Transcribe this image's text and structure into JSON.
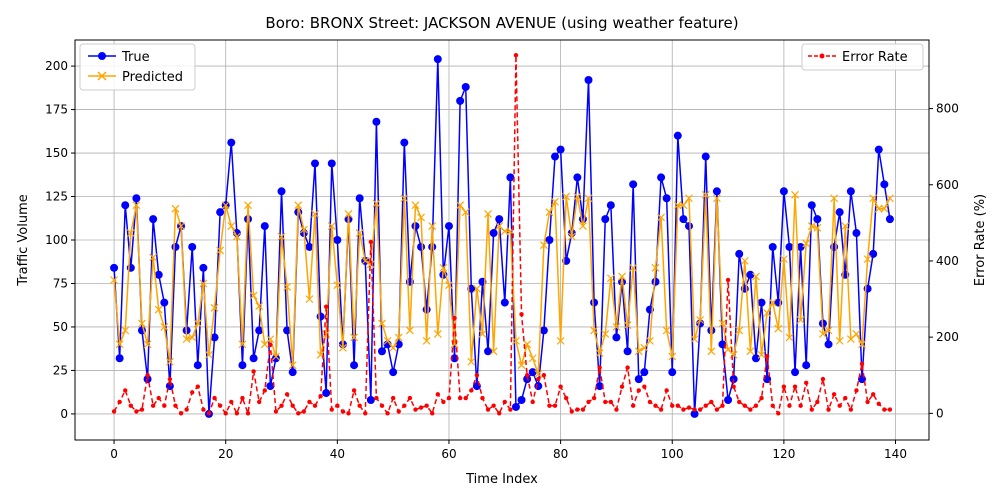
{
  "chart_data": {
    "type": "line",
    "title": "Boro: BRONX Street: JACKSON AVENUE (using weather feature)",
    "xlabel": "Time Index",
    "ylabel": "Traffic Volume",
    "y2label": "Error Rate (%)",
    "xlim": [
      -7,
      146
    ],
    "ylim": [
      -15,
      215
    ],
    "y2lim": [
      -70,
      980
    ],
    "xticks": [
      0,
      20,
      40,
      60,
      80,
      100,
      120,
      140
    ],
    "yticks": [
      0,
      25,
      50,
      75,
      100,
      125,
      150,
      175,
      200
    ],
    "y2ticks": [
      0,
      200,
      400,
      600,
      800
    ],
    "grid": true,
    "legend_left": "upper-left",
    "legend_right": "upper-right",
    "x": [
      0,
      1,
      2,
      3,
      4,
      5,
      6,
      7,
      8,
      9,
      10,
      11,
      12,
      13,
      14,
      15,
      16,
      17,
      18,
      19,
      20,
      21,
      22,
      23,
      24,
      25,
      26,
      27,
      28,
      29,
      30,
      31,
      32,
      33,
      34,
      35,
      36,
      37,
      38,
      39,
      40,
      41,
      42,
      43,
      44,
      45,
      46,
      47,
      48,
      49,
      50,
      51,
      52,
      53,
      54,
      55,
      56,
      57,
      58,
      59,
      60,
      61,
      62,
      63,
      64,
      65,
      66,
      67,
      68,
      69,
      70,
      71,
      72,
      73,
      74,
      75,
      76,
      77,
      78,
      79,
      80,
      81,
      82,
      83,
      84,
      85,
      86,
      87,
      88,
      89,
      90,
      91,
      92,
      93,
      94,
      95,
      96,
      97,
      98,
      99,
      100,
      101,
      102,
      103,
      104,
      105,
      106,
      107,
      108,
      109,
      110,
      111,
      112,
      113,
      114,
      115,
      116,
      117,
      118,
      119,
      120,
      121,
      122,
      123,
      124,
      125,
      126,
      127,
      128,
      129,
      130,
      131,
      132,
      133,
      134,
      135,
      136,
      137,
      138,
      139
    ],
    "series": [
      {
        "name": "True",
        "color": "#0000ff",
        "marker": "circle",
        "axis": "left",
        "values": [
          84,
          32,
          120,
          84,
          124,
          48,
          20,
          112,
          80,
          64,
          16,
          96,
          108,
          48,
          96,
          28,
          84,
          0,
          44,
          116,
          120,
          156,
          104,
          28,
          112,
          32,
          48,
          108,
          16,
          32,
          128,
          48,
          24,
          116,
          104,
          96,
          144,
          56,
          12,
          144,
          100,
          40,
          112,
          28,
          124,
          88,
          8,
          168,
          36,
          40,
          24,
          40,
          156,
          76,
          108,
          96,
          60,
          96,
          204,
          80,
          108,
          32,
          180,
          188,
          72,
          16,
          76,
          36,
          104,
          112,
          64,
          136,
          4,
          8,
          20,
          24,
          16,
          48,
          100,
          148,
          152,
          88,
          104,
          136,
          112,
          192,
          64,
          16,
          112,
          120,
          44,
          76,
          36,
          132,
          20,
          24,
          60,
          76,
          136,
          124,
          24,
          160,
          112,
          108,
          0,
          52,
          148,
          48,
          128,
          40,
          8,
          20,
          92,
          72,
          80,
          32,
          64,
          20,
          96,
          64,
          128,
          96,
          24,
          96,
          28,
          120,
          112,
          52,
          40,
          96,
          116,
          80,
          128,
          104,
          20,
          72,
          92,
          152,
          132,
          112
        ]
      },
      {
        "name": "Predicted",
        "color": "#ffa500",
        "marker": "x",
        "axis": "left",
        "values": [
          77,
          40,
          48,
          104,
          120,
          52,
          40,
          90,
          60,
          50,
          30,
          118,
          108,
          43,
          44,
          52,
          75,
          34,
          61,
          94,
          120,
          108,
          102,
          40,
          120,
          68,
          62,
          40,
          43,
          33,
          102,
          73,
          28,
          120,
          106,
          66,
          115,
          34,
          46,
          108,
          74,
          38,
          115,
          44,
          104,
          88,
          86,
          121,
          52,
          42,
          38,
          44,
          124,
          48,
          120,
          113,
          42,
          108,
          46,
          84,
          74,
          40,
          120,
          116,
          30,
          72,
          46,
          115,
          36,
          108,
          105,
          105,
          42,
          28,
          40,
          32,
          23,
          97,
          116,
          122,
          42,
          125,
          102,
          125,
          108,
          124,
          48,
          35,
          46,
          78,
          50,
          79,
          51,
          84,
          36,
          38,
          42,
          84,
          113,
          48,
          33,
          120,
          120,
          124,
          43,
          54,
          126,
          36,
          124,
          52,
          37,
          34,
          48,
          88,
          36,
          79,
          34,
          58,
          64,
          49,
          89,
          44,
          126,
          54,
          98,
          108,
          107,
          46,
          48,
          124,
          42,
          108,
          43,
          46,
          40,
          89,
          124,
          118,
          118,
          124
        ]
      },
      {
        "name": "Error Rate",
        "color": "#ff0000",
        "marker": "dot",
        "axis": "right",
        "values": [
          5,
          30,
          60,
          20,
          5,
          10,
          100,
          20,
          40,
          20,
          90,
          20,
          0,
          10,
          55,
          70,
          10,
          0,
          40,
          20,
          0,
          30,
          0,
          40,
          0,
          110,
          30,
          60,
          180,
          5,
          20,
          50,
          20,
          0,
          5,
          30,
          20,
          45,
          280,
          10,
          20,
          5,
          0,
          60,
          20,
          0,
          450,
          40,
          20,
          0,
          40,
          5,
          20,
          40,
          10,
          15,
          20,
          0,
          50,
          30,
          40,
          250,
          40,
          40,
          60,
          100,
          40,
          10,
          20,
          0,
          30,
          10,
          940,
          260,
          100,
          30,
          90,
          100,
          20,
          20,
          70,
          40,
          5,
          10,
          10,
          30,
          40,
          120,
          30,
          30,
          10,
          70,
          120,
          20,
          60,
          70,
          30,
          20,
          10,
          60,
          20,
          20,
          10,
          15,
          10,
          10,
          20,
          30,
          10,
          20,
          350,
          70,
          30,
          20,
          10,
          20,
          40,
          150,
          20,
          0,
          70,
          20,
          70,
          20,
          80,
          10,
          30,
          90,
          10,
          50,
          20,
          40,
          10,
          60,
          130,
          30,
          50,
          25,
          10,
          10
        ]
      }
    ]
  }
}
